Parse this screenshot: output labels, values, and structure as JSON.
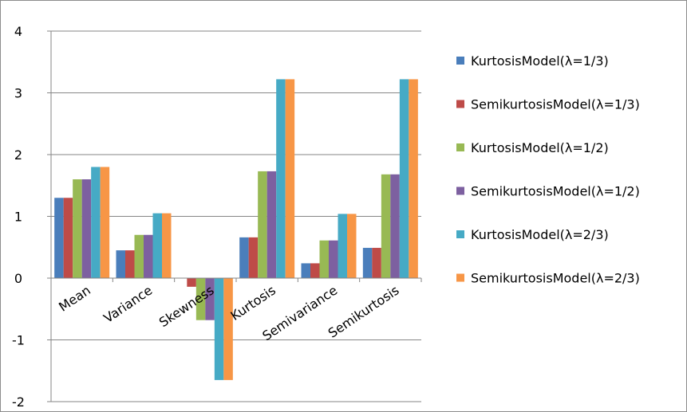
{
  "chart_data": {
    "type": "bar",
    "categories": [
      "Mean",
      "Variance",
      "Skewness",
      "Kurtosis",
      "Semivariance",
      "Semikurtosis"
    ],
    "ylim": [
      -2,
      4
    ],
    "yticks": [
      4,
      3,
      2,
      1,
      0,
      -1,
      -2
    ],
    "ytick_labels": [
      "4",
      "3",
      "2",
      "1",
      "0",
      "-1",
      "-2"
    ],
    "grid": true,
    "legend_position": "right",
    "series": [
      {
        "name": "KurtosisModel(λ=1/3)",
        "color": "#4a7ebb",
        "values": [
          1.3,
          0.45,
          0.0,
          0.66,
          0.24,
          0.49
        ]
      },
      {
        "name": "SemikurtosisModel(λ=1/3)",
        "color": "#be4b48",
        "values": [
          1.3,
          0.45,
          -0.14,
          0.66,
          0.24,
          0.49
        ]
      },
      {
        "name": "KurtosisModel(λ=1/2)",
        "color": "#98b954",
        "values": [
          1.6,
          0.7,
          -0.68,
          1.73,
          0.61,
          1.68
        ]
      },
      {
        "name": "SemikurtosisModel(λ=1/2)",
        "color": "#7d60a0",
        "values": [
          1.6,
          0.7,
          -0.68,
          1.73,
          0.61,
          1.68
        ]
      },
      {
        "name": "KurtosisModel(λ=2/3)",
        "color": "#46aac5",
        "values": [
          1.8,
          1.05,
          -1.65,
          3.22,
          1.04,
          3.22
        ]
      },
      {
        "name": "SemikurtosisModel(λ=2/3)",
        "color": "#f79646",
        "values": [
          1.8,
          1.05,
          -1.65,
          3.22,
          1.04,
          3.22
        ]
      }
    ]
  }
}
